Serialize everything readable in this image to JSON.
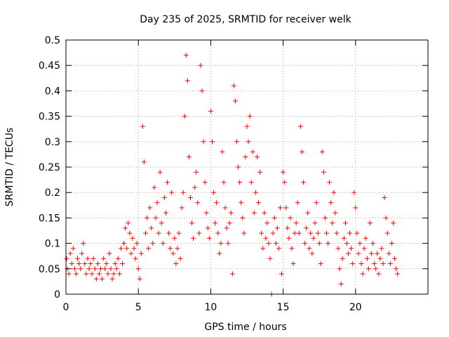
{
  "chart_data": {
    "type": "scatter",
    "title": "Day 235 of 2025, SRMTID for receiver welk",
    "xlabel": "GPS time / hours",
    "ylabel": "SRMTID / TECUs",
    "xlim": [
      0,
      25
    ],
    "ylim": [
      0,
      0.5
    ],
    "xticks": [
      0,
      5,
      10,
      15,
      20
    ],
    "yticks": [
      0,
      0.05,
      0.1,
      0.15,
      0.2,
      0.25,
      0.3,
      0.35,
      0.4,
      0.45,
      0.5
    ],
    "xtick_labels": [
      "0",
      "5",
      "10",
      "15",
      "20"
    ],
    "ytick_labels": [
      "0",
      "0.05",
      "0.1",
      "0.15",
      "0.2",
      "0.25",
      "0.3",
      "0.35",
      "0.4",
      "0.45",
      "0.5"
    ],
    "grid": true,
    "marker": "+",
    "series": [
      {
        "name": "welk",
        "color": "#ff0000",
        "points": [
          [
            0.05,
            0.07
          ],
          [
            0.1,
            0.05
          ],
          [
            0.2,
            0.04
          ],
          [
            0.3,
            0.08
          ],
          [
            0.4,
            0.06
          ],
          [
            0.5,
            0.09
          ],
          [
            0.6,
            0.05
          ],
          [
            0.7,
            0.04
          ],
          [
            0.8,
            0.07
          ],
          [
            0.9,
            0.06
          ],
          [
            1.0,
            0.05
          ],
          [
            1.1,
            0.08
          ],
          [
            1.2,
            0.1
          ],
          [
            1.3,
            0.06
          ],
          [
            1.4,
            0.04
          ],
          [
            1.5,
            0.07
          ],
          [
            1.6,
            0.05
          ],
          [
            1.7,
            0.06
          ],
          [
            1.8,
            0.04
          ],
          [
            1.9,
            0.07
          ],
          [
            2.0,
            0.05
          ],
          [
            2.1,
            0.03
          ],
          [
            2.2,
            0.06
          ],
          [
            2.3,
            0.04
          ],
          [
            2.4,
            0.05
          ],
          [
            2.5,
            0.03
          ],
          [
            2.6,
            0.07
          ],
          [
            2.7,
            0.05
          ],
          [
            2.8,
            0.06
          ],
          [
            2.9,
            0.04
          ],
          [
            3.0,
            0.08
          ],
          [
            3.1,
            0.05
          ],
          [
            3.2,
            0.03
          ],
          [
            3.3,
            0.04
          ],
          [
            3.4,
            0.06
          ],
          [
            3.5,
            0.05
          ],
          [
            3.6,
            0.07
          ],
          [
            3.7,
            0.04
          ],
          [
            3.8,
            0.09
          ],
          [
            3.9,
            0.06
          ],
          [
            4.0,
            0.1
          ],
          [
            4.1,
            0.13
          ],
          [
            4.2,
            0.09
          ],
          [
            4.3,
            0.14
          ],
          [
            4.4,
            0.12
          ],
          [
            4.5,
            0.08
          ],
          [
            4.6,
            0.11
          ],
          [
            4.7,
            0.09
          ],
          [
            4.8,
            0.07
          ],
          [
            4.9,
            0.1
          ],
          [
            5.0,
            0.05
          ],
          [
            5.1,
            0.03
          ],
          [
            5.2,
            0.08
          ],
          [
            5.3,
            0.33
          ],
          [
            5.4,
            0.26
          ],
          [
            5.5,
            0.12
          ],
          [
            5.6,
            0.15
          ],
          [
            5.7,
            0.09
          ],
          [
            5.8,
            0.17
          ],
          [
            5.9,
            0.13
          ],
          [
            6.0,
            0.1
          ],
          [
            6.1,
            0.21
          ],
          [
            6.2,
            0.15
          ],
          [
            6.3,
            0.18
          ],
          [
            6.4,
            0.12
          ],
          [
            6.5,
            0.24
          ],
          [
            6.6,
            0.14
          ],
          [
            6.7,
            0.1
          ],
          [
            6.8,
            0.19
          ],
          [
            6.9,
            0.16
          ],
          [
            7.0,
            0.22
          ],
          [
            7.1,
            0.12
          ],
          [
            7.2,
            0.09
          ],
          [
            7.3,
            0.2
          ],
          [
            7.4,
            0.08
          ],
          [
            7.5,
            0.11
          ],
          [
            7.6,
            0.06
          ],
          [
            7.7,
            0.09
          ],
          [
            7.8,
            0.12
          ],
          [
            7.9,
            0.07
          ],
          [
            8.0,
            0.17
          ],
          [
            8.1,
            0.2
          ],
          [
            8.2,
            0.35
          ],
          [
            8.3,
            0.47
          ],
          [
            8.4,
            0.42
          ],
          [
            8.5,
            0.27
          ],
          [
            8.6,
            0.19
          ],
          [
            8.7,
            0.14
          ],
          [
            8.8,
            0.11
          ],
          [
            8.9,
            0.21
          ],
          [
            9.0,
            0.24
          ],
          [
            9.1,
            0.18
          ],
          [
            9.2,
            0.12
          ],
          [
            9.3,
            0.45
          ],
          [
            9.4,
            0.4
          ],
          [
            9.5,
            0.3
          ],
          [
            9.6,
            0.22
          ],
          [
            9.7,
            0.16
          ],
          [
            9.8,
            0.13
          ],
          [
            9.9,
            0.11
          ],
          [
            10.0,
            0.36
          ],
          [
            10.1,
            0.3
          ],
          [
            10.2,
            0.2
          ],
          [
            10.3,
            0.14
          ],
          [
            10.4,
            0.18
          ],
          [
            10.5,
            0.12
          ],
          [
            10.6,
            0.08
          ],
          [
            10.7,
            0.1
          ],
          [
            10.8,
            0.28
          ],
          [
            10.9,
            0.22
          ],
          [
            11.0,
            0.17
          ],
          [
            11.1,
            0.13
          ],
          [
            11.2,
            0.1
          ],
          [
            11.3,
            0.14
          ],
          [
            11.4,
            0.16
          ],
          [
            11.5,
            0.04
          ],
          [
            11.6,
            0.41
          ],
          [
            11.7,
            0.38
          ],
          [
            11.8,
            0.3
          ],
          [
            11.9,
            0.25
          ],
          [
            12.0,
            0.22
          ],
          [
            12.1,
            0.18
          ],
          [
            12.2,
            0.15
          ],
          [
            12.3,
            0.12
          ],
          [
            12.4,
            0.27
          ],
          [
            12.5,
            0.33
          ],
          [
            12.6,
            0.3
          ],
          [
            12.7,
            0.35
          ],
          [
            12.8,
            0.22
          ],
          [
            12.9,
            0.28
          ],
          [
            13.0,
            0.16
          ],
          [
            13.1,
            0.2
          ],
          [
            13.2,
            0.27
          ],
          [
            13.3,
            0.18
          ],
          [
            13.4,
            0.24
          ],
          [
            13.5,
            0.12
          ],
          [
            13.6,
            0.09
          ],
          [
            13.7,
            0.16
          ],
          [
            13.8,
            0.11
          ],
          [
            13.9,
            0.14
          ],
          [
            14.0,
            0.1
          ],
          [
            14.1,
            0.07
          ],
          [
            14.2,
            0.0
          ],
          [
            14.3,
            0.12
          ],
          [
            14.4,
            0.15
          ],
          [
            14.5,
            0.1
          ],
          [
            14.6,
            0.13
          ],
          [
            14.7,
            0.09
          ],
          [
            14.8,
            0.17
          ],
          [
            14.9,
            0.04
          ],
          [
            15.0,
            0.24
          ],
          [
            15.1,
            0.22
          ],
          [
            15.2,
            0.17
          ],
          [
            15.3,
            0.13
          ],
          [
            15.4,
            0.11
          ],
          [
            15.5,
            0.15
          ],
          [
            15.6,
            0.09
          ],
          [
            15.7,
            0.06
          ],
          [
            15.8,
            0.12
          ],
          [
            15.9,
            0.14
          ],
          [
            16.0,
            0.18
          ],
          [
            16.1,
            0.12
          ],
          [
            16.2,
            0.33
          ],
          [
            16.3,
            0.28
          ],
          [
            16.4,
            0.22
          ],
          [
            16.5,
            0.1
          ],
          [
            16.6,
            0.13
          ],
          [
            16.7,
            0.16
          ],
          [
            16.8,
            0.09
          ],
          [
            16.9,
            0.12
          ],
          [
            17.0,
            0.08
          ],
          [
            17.1,
            0.11
          ],
          [
            17.2,
            0.14
          ],
          [
            17.3,
            0.18
          ],
          [
            17.4,
            0.12
          ],
          [
            17.5,
            0.1
          ],
          [
            17.6,
            0.06
          ],
          [
            17.7,
            0.28
          ],
          [
            17.8,
            0.24
          ],
          [
            17.9,
            0.15
          ],
          [
            18.0,
            0.12
          ],
          [
            18.1,
            0.1
          ],
          [
            18.2,
            0.22
          ],
          [
            18.3,
            0.18
          ],
          [
            18.4,
            0.14
          ],
          [
            18.5,
            0.2
          ],
          [
            18.6,
            0.16
          ],
          [
            18.7,
            0.12
          ],
          [
            18.8,
            0.09
          ],
          [
            18.9,
            0.05
          ],
          [
            19.0,
            0.02
          ],
          [
            19.1,
            0.07
          ],
          [
            19.2,
            0.11
          ],
          [
            19.3,
            0.14
          ],
          [
            19.4,
            0.1
          ],
          [
            19.5,
            0.08
          ],
          [
            19.6,
            0.12
          ],
          [
            19.7,
            0.09
          ],
          [
            19.8,
            0.06
          ],
          [
            19.9,
            0.2
          ],
          [
            20.0,
            0.17
          ],
          [
            20.1,
            0.12
          ],
          [
            20.2,
            0.08
          ],
          [
            20.3,
            0.1
          ],
          [
            20.4,
            0.06
          ],
          [
            20.5,
            0.04
          ],
          [
            20.6,
            0.09
          ],
          [
            20.7,
            0.11
          ],
          [
            20.8,
            0.07
          ],
          [
            20.9,
            0.05
          ],
          [
            21.0,
            0.14
          ],
          [
            21.1,
            0.08
          ],
          [
            21.2,
            0.1
          ],
          [
            21.3,
            0.06
          ],
          [
            21.4,
            0.05
          ],
          [
            21.5,
            0.08
          ],
          [
            21.6,
            0.04
          ],
          [
            21.7,
            0.07
          ],
          [
            21.8,
            0.09
          ],
          [
            21.9,
            0.06
          ],
          [
            22.0,
            0.19
          ],
          [
            22.1,
            0.15
          ],
          [
            22.2,
            0.12
          ],
          [
            22.3,
            0.08
          ],
          [
            22.4,
            0.06
          ],
          [
            22.5,
            0.1
          ],
          [
            22.6,
            0.14
          ],
          [
            22.7,
            0.07
          ],
          [
            22.8,
            0.05
          ],
          [
            22.9,
            0.04
          ]
        ]
      }
    ]
  }
}
